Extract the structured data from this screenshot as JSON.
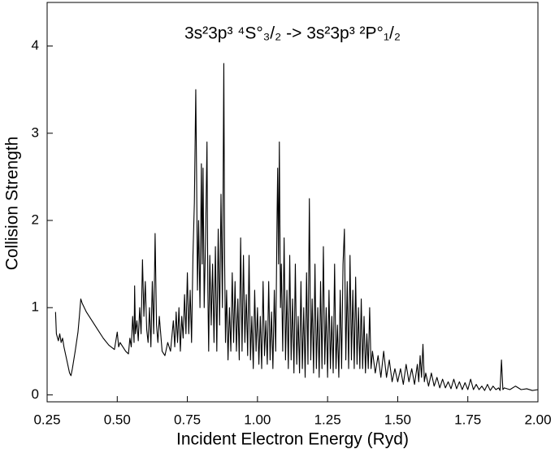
{
  "chart_data": {
    "type": "line",
    "title": "3s²3p³ ⁴S°₃/₂ -> 3s²3p³ ²P°₁/₂",
    "x_label": "Incident Electron Energy (Ryd)",
    "y_label": "Collision Strength",
    "color": "#000000",
    "xlim": [
      0.25,
      2.0
    ],
    "ylim": [
      -0.08,
      4.5
    ],
    "xticks": [
      0.25,
      {
        "value": 0.5,
        "label": "0.50"
      },
      0.75,
      {
        "value": 1.0,
        "label": "1.00"
      },
      1.25,
      {
        "value": 1.5,
        "label": "1.50"
      },
      1.75,
      {
        "value": 2.0,
        "label": "2.00"
      }
    ],
    "yticks": [
      0,
      1,
      2,
      3,
      4
    ],
    "x": [
      0.28,
      0.283,
      0.29,
      0.295,
      0.3,
      0.305,
      0.31,
      0.32,
      0.33,
      0.335,
      0.34,
      0.35,
      0.36,
      0.365,
      0.37,
      0.375,
      0.39,
      0.41,
      0.43,
      0.45,
      0.47,
      0.49,
      0.5,
      0.505,
      0.51,
      0.52,
      0.53,
      0.54,
      0.545,
      0.55,
      0.555,
      0.56,
      0.562,
      0.565,
      0.57,
      0.575,
      0.58,
      0.585,
      0.59,
      0.595,
      0.6,
      0.605,
      0.61,
      0.615,
      0.62,
      0.625,
      0.63,
      0.635,
      0.64,
      0.645,
      0.65,
      0.66,
      0.67,
      0.68,
      0.69,
      0.7,
      0.705,
      0.71,
      0.715,
      0.72,
      0.725,
      0.73,
      0.735,
      0.74,
      0.745,
      0.75,
      0.755,
      0.76,
      0.765,
      0.77,
      0.775,
      0.78,
      0.783,
      0.786,
      0.79,
      0.795,
      0.8,
      0.803,
      0.806,
      0.81,
      0.815,
      0.82,
      0.823,
      0.826,
      0.83,
      0.835,
      0.84,
      0.845,
      0.85,
      0.855,
      0.86,
      0.865,
      0.87,
      0.875,
      0.88,
      0.883,
      0.886,
      0.89,
      0.895,
      0.9,
      0.905,
      0.91,
      0.915,
      0.92,
      0.925,
      0.93,
      0.935,
      0.94,
      0.945,
      0.95,
      0.955,
      0.96,
      0.965,
      0.97,
      0.975,
      0.98,
      0.985,
      0.99,
      0.995,
      1.0,
      1.005,
      1.01,
      1.015,
      1.02,
      1.025,
      1.03,
      1.035,
      1.04,
      1.045,
      1.05,
      1.055,
      1.06,
      1.065,
      1.07,
      1.072,
      1.075,
      1.078,
      1.082,
      1.085,
      1.09,
      1.095,
      1.1,
      1.105,
      1.11,
      1.115,
      1.12,
      1.125,
      1.13,
      1.135,
      1.14,
      1.145,
      1.15,
      1.155,
      1.16,
      1.165,
      1.17,
      1.175,
      1.18,
      1.185,
      1.19,
      1.195,
      1.2,
      1.205,
      1.21,
      1.215,
      1.22,
      1.225,
      1.23,
      1.235,
      1.24,
      1.245,
      1.25,
      1.255,
      1.26,
      1.265,
      1.27,
      1.275,
      1.28,
      1.285,
      1.29,
      1.295,
      1.3,
      1.305,
      1.31,
      1.315,
      1.32,
      1.325,
      1.33,
      1.335,
      1.34,
      1.345,
      1.35,
      1.355,
      1.36,
      1.365,
      1.37,
      1.375,
      1.38,
      1.385,
      1.39,
      1.395,
      1.4,
      1.405,
      1.41,
      1.42,
      1.43,
      1.44,
      1.45,
      1.46,
      1.47,
      1.48,
      1.49,
      1.5,
      1.51,
      1.52,
      1.53,
      1.54,
      1.55,
      1.56,
      1.57,
      1.575,
      1.58,
      1.585,
      1.59,
      1.595,
      1.6,
      1.61,
      1.62,
      1.63,
      1.64,
      1.65,
      1.66,
      1.67,
      1.68,
      1.69,
      1.7,
      1.71,
      1.72,
      1.73,
      1.74,
      1.75,
      1.76,
      1.77,
      1.78,
      1.79,
      1.8,
      1.81,
      1.82,
      1.83,
      1.84,
      1.85,
      1.86,
      1.865,
      1.87,
      1.875,
      1.88,
      1.9,
      1.92,
      1.94,
      1.96,
      1.98,
      2.0
    ],
    "values": [
      0.95,
      0.7,
      0.62,
      0.7,
      0.6,
      0.65,
      0.55,
      0.4,
      0.25,
      0.22,
      0.3,
      0.5,
      0.72,
      0.9,
      1.1,
      1.05,
      0.95,
      0.85,
      0.75,
      0.65,
      0.57,
      0.52,
      0.72,
      0.55,
      0.6,
      0.55,
      0.5,
      0.47,
      0.65,
      0.55,
      0.9,
      0.6,
      1.25,
      0.7,
      0.85,
      0.62,
      1.0,
      0.7,
      1.55,
      0.9,
      1.3,
      0.75,
      0.6,
      1.0,
      0.55,
      1.3,
      0.7,
      1.85,
      0.8,
      0.6,
      0.9,
      0.5,
      0.45,
      0.6,
      0.5,
      0.85,
      0.55,
      0.95,
      0.6,
      1.0,
      0.5,
      0.9,
      0.65,
      1.15,
      0.7,
      1.4,
      0.7,
      1.2,
      0.6,
      1.6,
      2.2,
      3.5,
      2.5,
      1.2,
      2.0,
      1.0,
      2.65,
      1.5,
      2.6,
      1.0,
      1.8,
      2.9,
      1.2,
      0.5,
      1.6,
      0.8,
      1.5,
      0.6,
      1.7,
      0.5,
      1.9,
      0.8,
      2.3,
      1.0,
      3.8,
      1.5,
      0.6,
      1.2,
      0.4,
      1.0,
      0.5,
      1.4,
      0.6,
      1.3,
      0.5,
      1.1,
      0.4,
      1.8,
      0.5,
      1.6,
      0.6,
      1.15,
      0.45,
      1.6,
      0.4,
      0.9,
      0.3,
      1.2,
      0.5,
      1.0,
      0.35,
      0.9,
      0.3,
      1.3,
      0.45,
      0.85,
      0.35,
      1.3,
      0.4,
      0.95,
      0.3,
      1.2,
      0.5,
      2.1,
      2.6,
      1.5,
      2.9,
      1.0,
      1.5,
      0.5,
      1.8,
      0.4,
      1.2,
      0.3,
      1.6,
      0.4,
      1.1,
      0.25,
      1.5,
      0.35,
      0.9,
      0.25,
      1.3,
      0.3,
      1.0,
      0.2,
      1.4,
      0.35,
      2.25,
      0.4,
      1.1,
      0.25,
      1.5,
      0.3,
      1.0,
      0.2,
      1.3,
      0.3,
      1.7,
      0.35,
      1.0,
      0.2,
      1.2,
      0.3,
      0.9,
      0.25,
      1.5,
      0.3,
      0.8,
      0.2,
      1.2,
      0.3,
      1.5,
      1.9,
      0.4,
      1.3,
      0.3,
      1.6,
      0.4,
      1.2,
      0.3,
      1.35,
      0.35,
      1.0,
      0.3,
      1.1,
      0.3,
      0.9,
      0.25,
      0.7,
      0.3,
      1.0,
      0.3,
      0.5,
      0.25,
      0.45,
      0.2,
      0.5,
      0.2,
      0.4,
      0.15,
      0.3,
      0.15,
      0.3,
      0.12,
      0.35,
      0.15,
      0.3,
      0.12,
      0.35,
      0.15,
      0.45,
      0.2,
      0.58,
      0.15,
      0.25,
      0.1,
      0.25,
      0.1,
      0.2,
      0.08,
      0.18,
      0.08,
      0.15,
      0.07,
      0.18,
      0.07,
      0.15,
      0.06,
      0.14,
      0.06,
      0.18,
      0.06,
      0.12,
      0.06,
      0.1,
      0.05,
      0.12,
      0.05,
      0.1,
      0.06,
      0.08,
      0.05,
      0.4,
      0.06,
      0.08,
      0.06,
      0.1,
      0.06,
      0.07,
      0.05,
      0.06
    ]
  }
}
